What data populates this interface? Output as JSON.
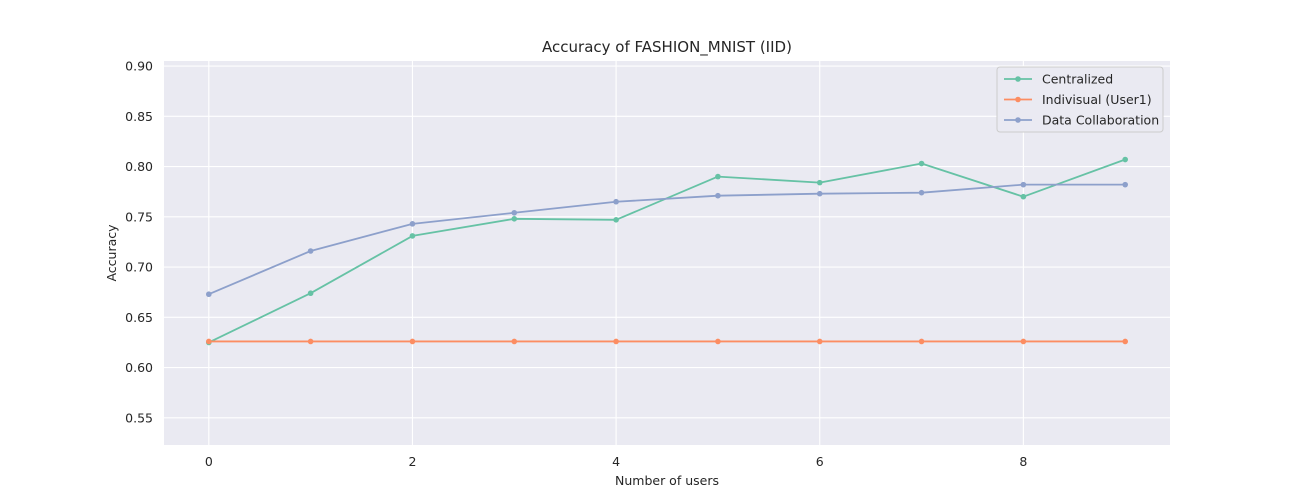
{
  "chart_data": {
    "type": "line",
    "title": "Accuracy of FASHION_MNIST (IID)",
    "xlabel": "Number of users",
    "ylabel": "Accuracy",
    "xlim": [
      -0.44,
      9.44
    ],
    "ylim": [
      0.523,
      0.905
    ],
    "xticks": [
      0,
      2,
      4,
      6,
      8
    ],
    "yticks": [
      0.55,
      0.6,
      0.65,
      0.7,
      0.75,
      0.8,
      0.85,
      0.9
    ],
    "ytick_labels": [
      "0.55",
      "0.60",
      "0.65",
      "0.70",
      "0.75",
      "0.80",
      "0.85",
      "0.90"
    ],
    "grid": true,
    "background": "#eaeaf2",
    "legend_position": "upper right",
    "x": [
      0,
      1,
      2,
      3,
      4,
      5,
      6,
      7,
      8,
      9
    ],
    "series": [
      {
        "name": "Centralized",
        "color": "#66c2a5",
        "values": [
          0.625,
          0.674,
          0.731,
          0.748,
          0.747,
          0.79,
          0.784,
          0.803,
          0.77,
          0.807
        ]
      },
      {
        "name": "Indivisual (User1)",
        "color": "#fc8d62",
        "values": [
          0.626,
          0.626,
          0.626,
          0.626,
          0.626,
          0.626,
          0.626,
          0.626,
          0.626,
          0.626
        ]
      },
      {
        "name": "Data Collaboration",
        "color": "#8da0cb",
        "values": [
          0.673,
          0.716,
          0.743,
          0.754,
          0.765,
          0.771,
          0.773,
          0.774,
          0.782,
          0.782
        ]
      }
    ]
  }
}
